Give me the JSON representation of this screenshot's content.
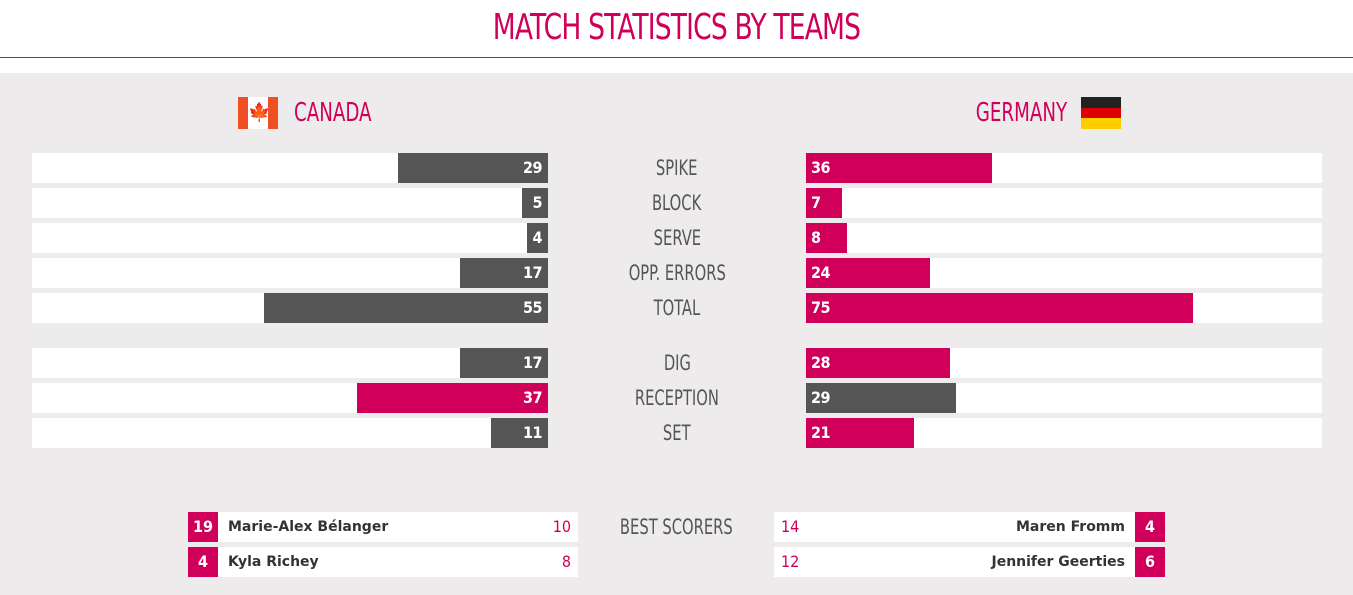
{
  "title": "MATCH STATISTICS BY TEAMS",
  "teams": {
    "left": {
      "name": "CANADA",
      "flag_icon": "canada-flag-icon"
    },
    "right": {
      "name": "GERMANY",
      "flag_icon": "germany-flag-icon"
    }
  },
  "colors": {
    "accent": "#d0005a",
    "dark_bar": "#555555",
    "panel": "#edebeb"
  },
  "chart_data": {
    "type": "bar",
    "categories": [
      "SPIKE",
      "BLOCK",
      "SERVE",
      "OPP. ERRORS",
      "TOTAL",
      "DIG",
      "RECEPTION",
      "SET"
    ],
    "series": [
      {
        "name": "CANADA",
        "values": [
          29,
          5,
          4,
          17,
          55,
          17,
          37,
          11
        ]
      },
      {
        "name": "GERMANY",
        "values": [
          36,
          7,
          8,
          24,
          75,
          28,
          29,
          21
        ]
      }
    ],
    "ylim": [
      0,
      100
    ]
  },
  "best_scorers": {
    "label": "BEST SCORERS",
    "left": [
      {
        "number": "19",
        "name": "Marie-Alex Bélanger",
        "points": "10"
      },
      {
        "number": "4",
        "name": "Kyla Richey",
        "points": "8"
      }
    ],
    "right": [
      {
        "number": "4",
        "name": "Maren Fromm",
        "points": "14"
      },
      {
        "number": "6",
        "name": "Jennifer Geerties",
        "points": "12"
      }
    ]
  }
}
